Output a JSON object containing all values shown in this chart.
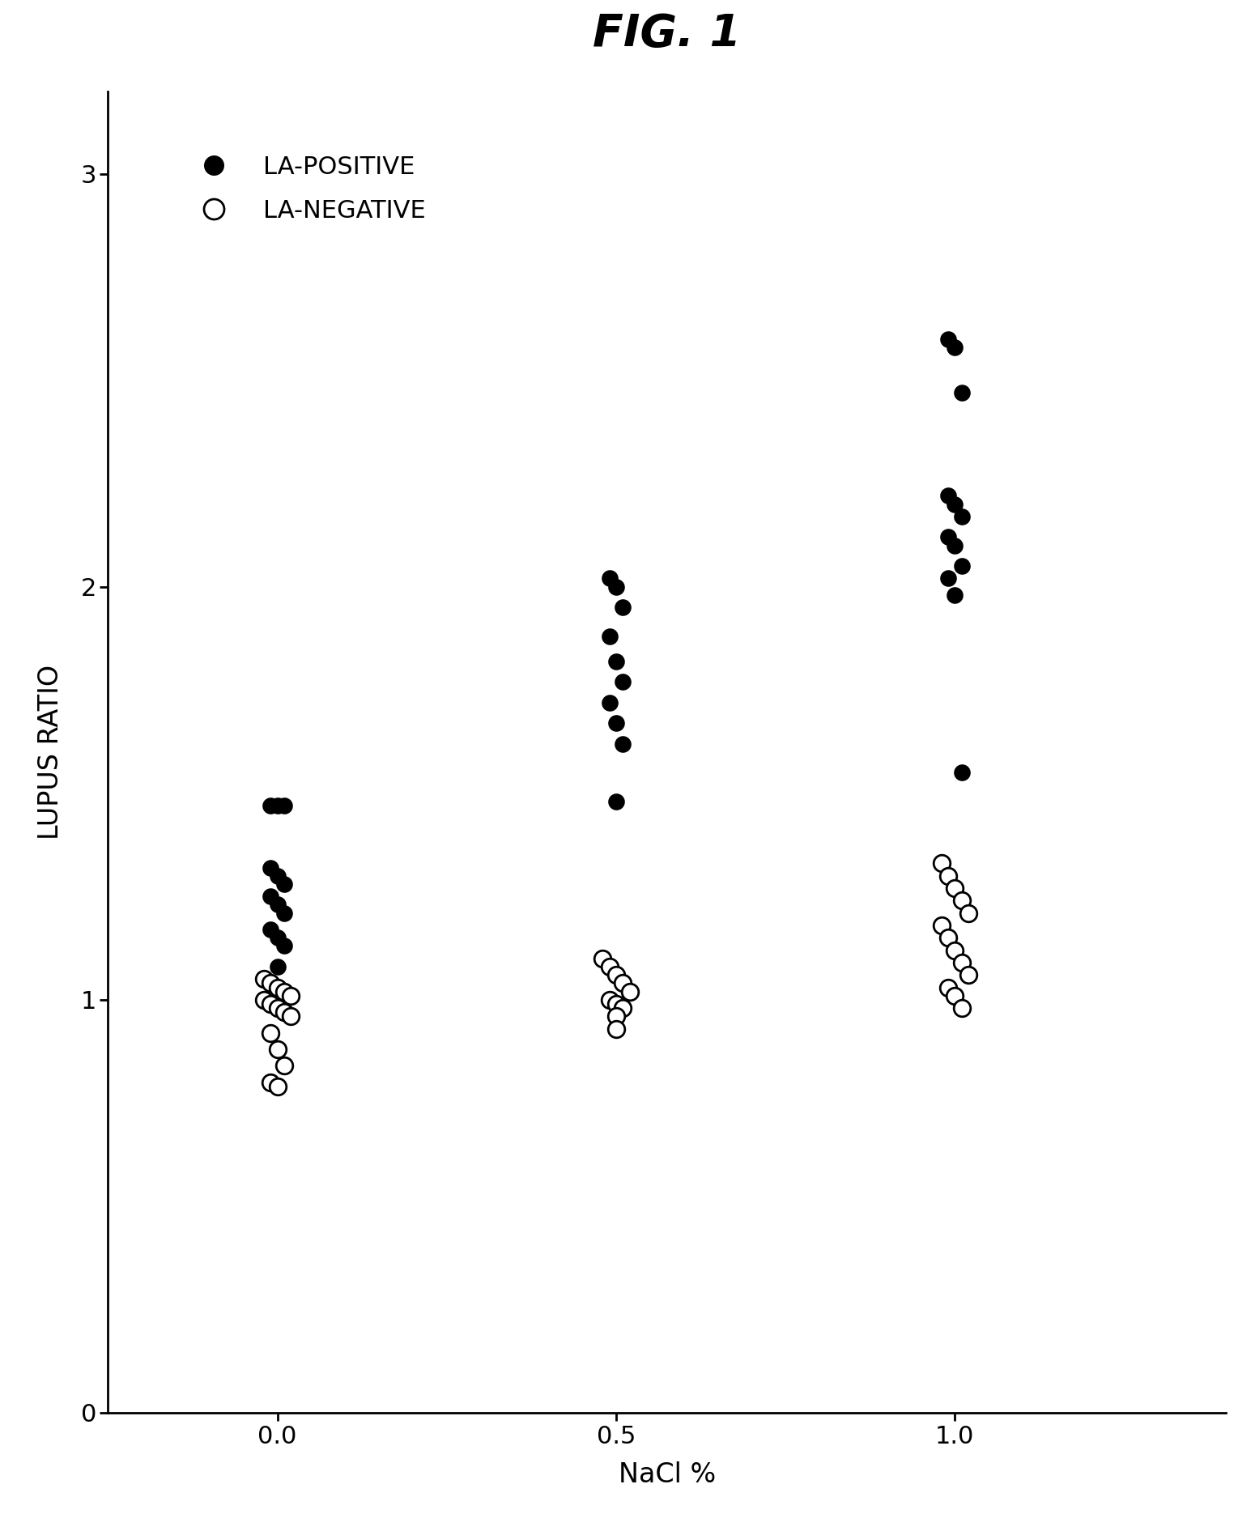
{
  "title": "FIG. 1",
  "xlabel": "NaCl %",
  "ylabel": "LUPUS RATIO",
  "xlim": [
    -0.25,
    1.4
  ],
  "ylim": [
    0,
    3.2
  ],
  "yticks": [
    0,
    1,
    2,
    3
  ],
  "xtick_positions": [
    0.0,
    0.5,
    1.0
  ],
  "xtick_labels": [
    "0.0",
    "0.5",
    "1.0"
  ],
  "la_positive_0": {
    "x": [
      -0.01,
      0.0,
      0.01,
      -0.01,
      0.0,
      0.01,
      -0.01,
      0.0,
      0.01,
      -0.01,
      0.0,
      0.01,
      0.0
    ],
    "y": [
      1.47,
      1.47,
      1.47,
      1.32,
      1.3,
      1.28,
      1.25,
      1.23,
      1.21,
      1.17,
      1.15,
      1.13,
      1.08
    ]
  },
  "la_positive_5": {
    "x": [
      0.49,
      0.5,
      0.51,
      0.49,
      0.5,
      0.51,
      0.49,
      0.5,
      0.51,
      0.5
    ],
    "y": [
      2.02,
      2.0,
      1.95,
      1.88,
      1.82,
      1.77,
      1.72,
      1.67,
      1.62,
      1.48
    ]
  },
  "la_positive_10": {
    "x": [
      0.99,
      1.0,
      1.01,
      0.99,
      1.0,
      1.01,
      0.99,
      1.0,
      1.01,
      0.99,
      1.0,
      1.01
    ],
    "y": [
      2.6,
      2.58,
      2.47,
      2.22,
      2.2,
      2.17,
      2.12,
      2.1,
      2.05,
      2.02,
      1.98,
      1.55
    ]
  },
  "la_negative_0": {
    "x": [
      -0.02,
      -0.01,
      0.0,
      0.01,
      0.02,
      -0.02,
      -0.01,
      0.0,
      0.01,
      0.02,
      -0.01,
      0.0,
      0.01,
      -0.01,
      0.0
    ],
    "y": [
      1.05,
      1.04,
      1.03,
      1.02,
      1.01,
      1.0,
      0.99,
      0.98,
      0.97,
      0.96,
      0.92,
      0.88,
      0.84,
      0.8,
      0.79
    ]
  },
  "la_negative_5": {
    "x": [
      0.48,
      0.49,
      0.5,
      0.51,
      0.52,
      0.49,
      0.5,
      0.51,
      0.5,
      0.5
    ],
    "y": [
      1.1,
      1.08,
      1.06,
      1.04,
      1.02,
      1.0,
      0.99,
      0.98,
      0.96,
      0.93
    ]
  },
  "la_negative_10": {
    "x": [
      0.98,
      0.99,
      1.0,
      1.01,
      1.02,
      0.98,
      0.99,
      1.0,
      1.01,
      1.02,
      0.99,
      1.0,
      1.01
    ],
    "y": [
      1.33,
      1.3,
      1.27,
      1.24,
      1.21,
      1.18,
      1.15,
      1.12,
      1.09,
      1.06,
      1.03,
      1.01,
      0.98
    ]
  },
  "marker_size": 220,
  "lw": 2.0,
  "background_color": "#ffffff",
  "foreground_color": "#000000",
  "title_fontsize": 40,
  "label_fontsize": 24,
  "tick_fontsize": 22,
  "legend_fontsize": 22
}
